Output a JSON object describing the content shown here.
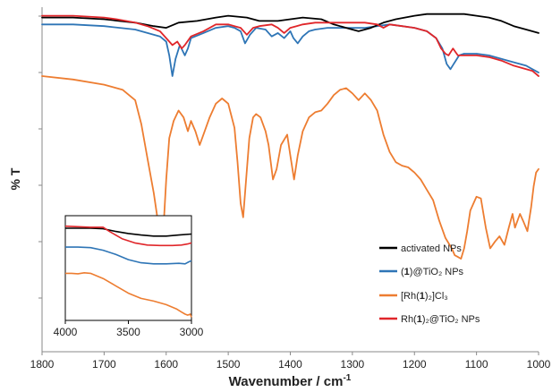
{
  "chart_data": {
    "type": "line",
    "title": "",
    "xlabel": "Wavenumber / cm",
    "xlabel_superscript": "-1",
    "ylabel": "% T",
    "xlim": [
      1800,
      1000
    ],
    "x_reversed": true,
    "ylim": [
      0,
      100
    ],
    "y_tick_labels_shown": false,
    "x_ticks": [
      "1800",
      "1700",
      "1600",
      "1500",
      "1400",
      "1300",
      "1200",
      "1100",
      "1000"
    ],
    "legend_position": "bottom-right",
    "series": [
      {
        "name": "activated NPs",
        "color": "#000000",
        "points": [
          [
            1800,
            97
          ],
          [
            1750,
            97
          ],
          [
            1700,
            96.5
          ],
          [
            1650,
            95.5
          ],
          [
            1620,
            94.5
          ],
          [
            1600,
            94
          ],
          [
            1580,
            95.5
          ],
          [
            1550,
            96
          ],
          [
            1520,
            97
          ],
          [
            1500,
            97.5
          ],
          [
            1470,
            97
          ],
          [
            1450,
            96
          ],
          [
            1420,
            96
          ],
          [
            1400,
            96.5
          ],
          [
            1380,
            97
          ],
          [
            1350,
            96.5
          ],
          [
            1330,
            95
          ],
          [
            1310,
            94
          ],
          [
            1290,
            93
          ],
          [
            1270,
            94
          ],
          [
            1250,
            95.5
          ],
          [
            1230,
            96.5
          ],
          [
            1200,
            97.5
          ],
          [
            1180,
            98
          ],
          [
            1150,
            98
          ],
          [
            1120,
            98
          ],
          [
            1100,
            97.5
          ],
          [
            1080,
            97
          ],
          [
            1060,
            96
          ],
          [
            1040,
            94.5
          ],
          [
            1020,
            93.5
          ],
          [
            1000,
            92.5
          ]
        ]
      },
      {
        "name": "(1)@TiO₂ NPs",
        "name_parts": [
          "(",
          "1",
          ")@TiO₂ NPs"
        ],
        "color": "#2E75B6",
        "points": [
          [
            1800,
            95
          ],
          [
            1750,
            95
          ],
          [
            1700,
            94.5
          ],
          [
            1650,
            93.5
          ],
          [
            1630,
            92.5
          ],
          [
            1610,
            91.5
          ],
          [
            1600,
            90
          ],
          [
            1595,
            86
          ],
          [
            1590,
            80
          ],
          [
            1585,
            85
          ],
          [
            1578,
            89
          ],
          [
            1570,
            86
          ],
          [
            1565,
            88
          ],
          [
            1560,
            91
          ],
          [
            1540,
            92.5
          ],
          [
            1520,
            94
          ],
          [
            1500,
            94.5
          ],
          [
            1490,
            94
          ],
          [
            1480,
            93
          ],
          [
            1473,
            89.5
          ],
          [
            1465,
            92
          ],
          [
            1455,
            94
          ],
          [
            1440,
            93.5
          ],
          [
            1430,
            91.5
          ],
          [
            1420,
            92.5
          ],
          [
            1410,
            91
          ],
          [
            1400,
            93
          ],
          [
            1395,
            91
          ],
          [
            1388,
            89.5
          ],
          [
            1380,
            91.5
          ],
          [
            1370,
            93
          ],
          [
            1360,
            93.5
          ],
          [
            1340,
            94
          ],
          [
            1320,
            94
          ],
          [
            1300,
            94
          ],
          [
            1280,
            94
          ],
          [
            1260,
            94.5
          ],
          [
            1240,
            95
          ],
          [
            1220,
            94.5
          ],
          [
            1200,
            94
          ],
          [
            1180,
            93
          ],
          [
            1165,
            91
          ],
          [
            1155,
            88
          ],
          [
            1148,
            83.5
          ],
          [
            1142,
            82
          ],
          [
            1135,
            84
          ],
          [
            1128,
            86
          ],
          [
            1120,
            86.5
          ],
          [
            1100,
            86.5
          ],
          [
            1080,
            86
          ],
          [
            1060,
            85
          ],
          [
            1040,
            84
          ],
          [
            1020,
            83
          ],
          [
            1010,
            82
          ],
          [
            1000,
            81
          ]
        ]
      },
      {
        "name": "[Rh(1)₂]Cl₃",
        "name_parts": [
          "[Rh(",
          "1",
          ")₂]Cl₃"
        ],
        "color": "#ED7D31",
        "points": [
          [
            1800,
            80
          ],
          [
            1750,
            79
          ],
          [
            1700,
            77.5
          ],
          [
            1670,
            76
          ],
          [
            1650,
            73
          ],
          [
            1640,
            66
          ],
          [
            1630,
            56
          ],
          [
            1620,
            46
          ],
          [
            1615,
            40
          ],
          [
            1610,
            32
          ],
          [
            1605,
            34
          ],
          [
            1600,
            50
          ],
          [
            1595,
            62
          ],
          [
            1588,
            67
          ],
          [
            1580,
            70
          ],
          [
            1572,
            68
          ],
          [
            1565,
            64
          ],
          [
            1560,
            67
          ],
          [
            1553,
            64
          ],
          [
            1546,
            60
          ],
          [
            1540,
            63
          ],
          [
            1530,
            68
          ],
          [
            1520,
            72
          ],
          [
            1510,
            73.5
          ],
          [
            1500,
            72
          ],
          [
            1490,
            65
          ],
          [
            1485,
            55
          ],
          [
            1480,
            43
          ],
          [
            1476,
            39
          ],
          [
            1472,
            48
          ],
          [
            1466,
            62
          ],
          [
            1460,
            68
          ],
          [
            1455,
            69
          ],
          [
            1448,
            68
          ],
          [
            1440,
            64
          ],
          [
            1435,
            60
          ],
          [
            1428,
            50
          ],
          [
            1422,
            53
          ],
          [
            1415,
            60
          ],
          [
            1405,
            63
          ],
          [
            1400,
            57
          ],
          [
            1394,
            50
          ],
          [
            1388,
            57
          ],
          [
            1380,
            64
          ],
          [
            1370,
            68
          ],
          [
            1360,
            69.5
          ],
          [
            1350,
            70
          ],
          [
            1340,
            72
          ],
          [
            1330,
            74.5
          ],
          [
            1320,
            76
          ],
          [
            1310,
            76.5
          ],
          [
            1300,
            75
          ],
          [
            1290,
            73
          ],
          [
            1280,
            75
          ],
          [
            1270,
            73
          ],
          [
            1260,
            70
          ],
          [
            1250,
            63
          ],
          [
            1240,
            58
          ],
          [
            1230,
            55
          ],
          [
            1220,
            54
          ],
          [
            1210,
            53.5
          ],
          [
            1200,
            52
          ],
          [
            1190,
            50
          ],
          [
            1180,
            47
          ],
          [
            1170,
            44
          ],
          [
            1160,
            38
          ],
          [
            1150,
            33
          ],
          [
            1140,
            30
          ],
          [
            1135,
            28
          ],
          [
            1130,
            27.5
          ],
          [
            1125,
            27
          ],
          [
            1120,
            30
          ],
          [
            1115,
            35
          ],
          [
            1110,
            41
          ],
          [
            1100,
            45
          ],
          [
            1093,
            44.5
          ],
          [
            1085,
            36
          ],
          [
            1078,
            30
          ],
          [
            1070,
            32
          ],
          [
            1063,
            33.5
          ],
          [
            1055,
            31
          ],
          [
            1048,
            36
          ],
          [
            1042,
            40
          ],
          [
            1038,
            36
          ],
          [
            1030,
            40
          ],
          [
            1025,
            38
          ],
          [
            1018,
            35
          ],
          [
            1012,
            42
          ],
          [
            1008,
            48
          ],
          [
            1004,
            52
          ],
          [
            1000,
            53
          ]
        ]
      },
      {
        "name": "Rh(1)₂@TiO₂ NPs",
        "name_parts": [
          "Rh(",
          "1",
          ")₂@TiO₂ NPs"
        ],
        "color": "#E0262A",
        "points": [
          [
            1800,
            97.5
          ],
          [
            1750,
            97.5
          ],
          [
            1700,
            97
          ],
          [
            1680,
            96.5
          ],
          [
            1650,
            95.5
          ],
          [
            1630,
            94.5
          ],
          [
            1610,
            93
          ],
          [
            1600,
            91
          ],
          [
            1590,
            89
          ],
          [
            1582,
            90
          ],
          [
            1575,
            88
          ],
          [
            1570,
            89
          ],
          [
            1560,
            91.5
          ],
          [
            1540,
            93
          ],
          [
            1520,
            95
          ],
          [
            1500,
            95
          ],
          [
            1490,
            94.5
          ],
          [
            1480,
            94
          ],
          [
            1470,
            92
          ],
          [
            1460,
            94
          ],
          [
            1450,
            94.5
          ],
          [
            1430,
            95
          ],
          [
            1420,
            94
          ],
          [
            1410,
            92.5
          ],
          [
            1400,
            94
          ],
          [
            1390,
            94.5
          ],
          [
            1380,
            95
          ],
          [
            1360,
            95.5
          ],
          [
            1340,
            95.5
          ],
          [
            1320,
            95.5
          ],
          [
            1300,
            95.5
          ],
          [
            1280,
            95.5
          ],
          [
            1260,
            95
          ],
          [
            1250,
            94
          ],
          [
            1240,
            95
          ],
          [
            1220,
            94.5
          ],
          [
            1200,
            94
          ],
          [
            1180,
            93
          ],
          [
            1165,
            91
          ],
          [
            1157,
            88
          ],
          [
            1150,
            86.5
          ],
          [
            1145,
            86
          ],
          [
            1138,
            88
          ],
          [
            1130,
            86
          ],
          [
            1120,
            86
          ],
          [
            1100,
            86
          ],
          [
            1080,
            85.5
          ],
          [
            1060,
            84.5
          ],
          [
            1040,
            83
          ],
          [
            1020,
            82
          ],
          [
            1010,
            81.5
          ],
          [
            1000,
            80
          ]
        ]
      }
    ],
    "inset": {
      "xlim": [
        4000,
        3000
      ],
      "x_reversed": true,
      "x_ticks": [
        "4000",
        "3500",
        "3000"
      ],
      "series": [
        {
          "name": "activated NPs",
          "color": "#000000",
          "points": [
            [
              4000,
              88
            ],
            [
              3900,
              88
            ],
            [
              3800,
              88
            ],
            [
              3700,
              87.5
            ],
            [
              3600,
              85
            ],
            [
              3500,
              83
            ],
            [
              3400,
              81.5
            ],
            [
              3300,
              80.5
            ],
            [
              3200,
              80.5
            ],
            [
              3100,
              81.5
            ],
            [
              3000,
              82.5
            ]
          ]
        },
        {
          "name": "Rh(1)₂@TiO₂ NPs",
          "color": "#E0262A",
          "points": [
            [
              4000,
              90
            ],
            [
              3900,
              89.5
            ],
            [
              3800,
              89
            ],
            [
              3700,
              89
            ],
            [
              3650,
              85
            ],
            [
              3550,
              78
            ],
            [
              3450,
              74
            ],
            [
              3350,
              72
            ],
            [
              3250,
              71.5
            ],
            [
              3150,
              71.5
            ],
            [
              3080,
              72
            ],
            [
              3030,
              73
            ],
            [
              3000,
              74
            ]
          ]
        },
        {
          "name": "(1)@TiO₂ NPs",
          "color": "#2E75B6",
          "points": [
            [
              4000,
              70
            ],
            [
              3900,
              70
            ],
            [
              3800,
              69.5
            ],
            [
              3700,
              67
            ],
            [
              3600,
              63
            ],
            [
              3500,
              58
            ],
            [
              3400,
              55
            ],
            [
              3300,
              54
            ],
            [
              3200,
              54
            ],
            [
              3100,
              54.5
            ],
            [
              3050,
              54
            ],
            [
              3020,
              56
            ],
            [
              3000,
              57
            ]
          ]
        },
        {
          "name": "[Rh(1)₂]Cl₃",
          "color": "#ED7D31",
          "points": [
            [
              4000,
              45
            ],
            [
              3950,
              45
            ],
            [
              3900,
              44.5
            ],
            [
              3850,
              45.5
            ],
            [
              3800,
              45
            ],
            [
              3700,
              40
            ],
            [
              3600,
              33
            ],
            [
              3500,
              26
            ],
            [
              3400,
              21
            ],
            [
              3300,
              18.5
            ],
            [
              3200,
              15
            ],
            [
              3120,
              11
            ],
            [
              3080,
              8
            ],
            [
              3050,
              6
            ],
            [
              3030,
              5
            ],
            [
              3010,
              6
            ],
            [
              3000,
              3
            ]
          ]
        }
      ]
    }
  }
}
